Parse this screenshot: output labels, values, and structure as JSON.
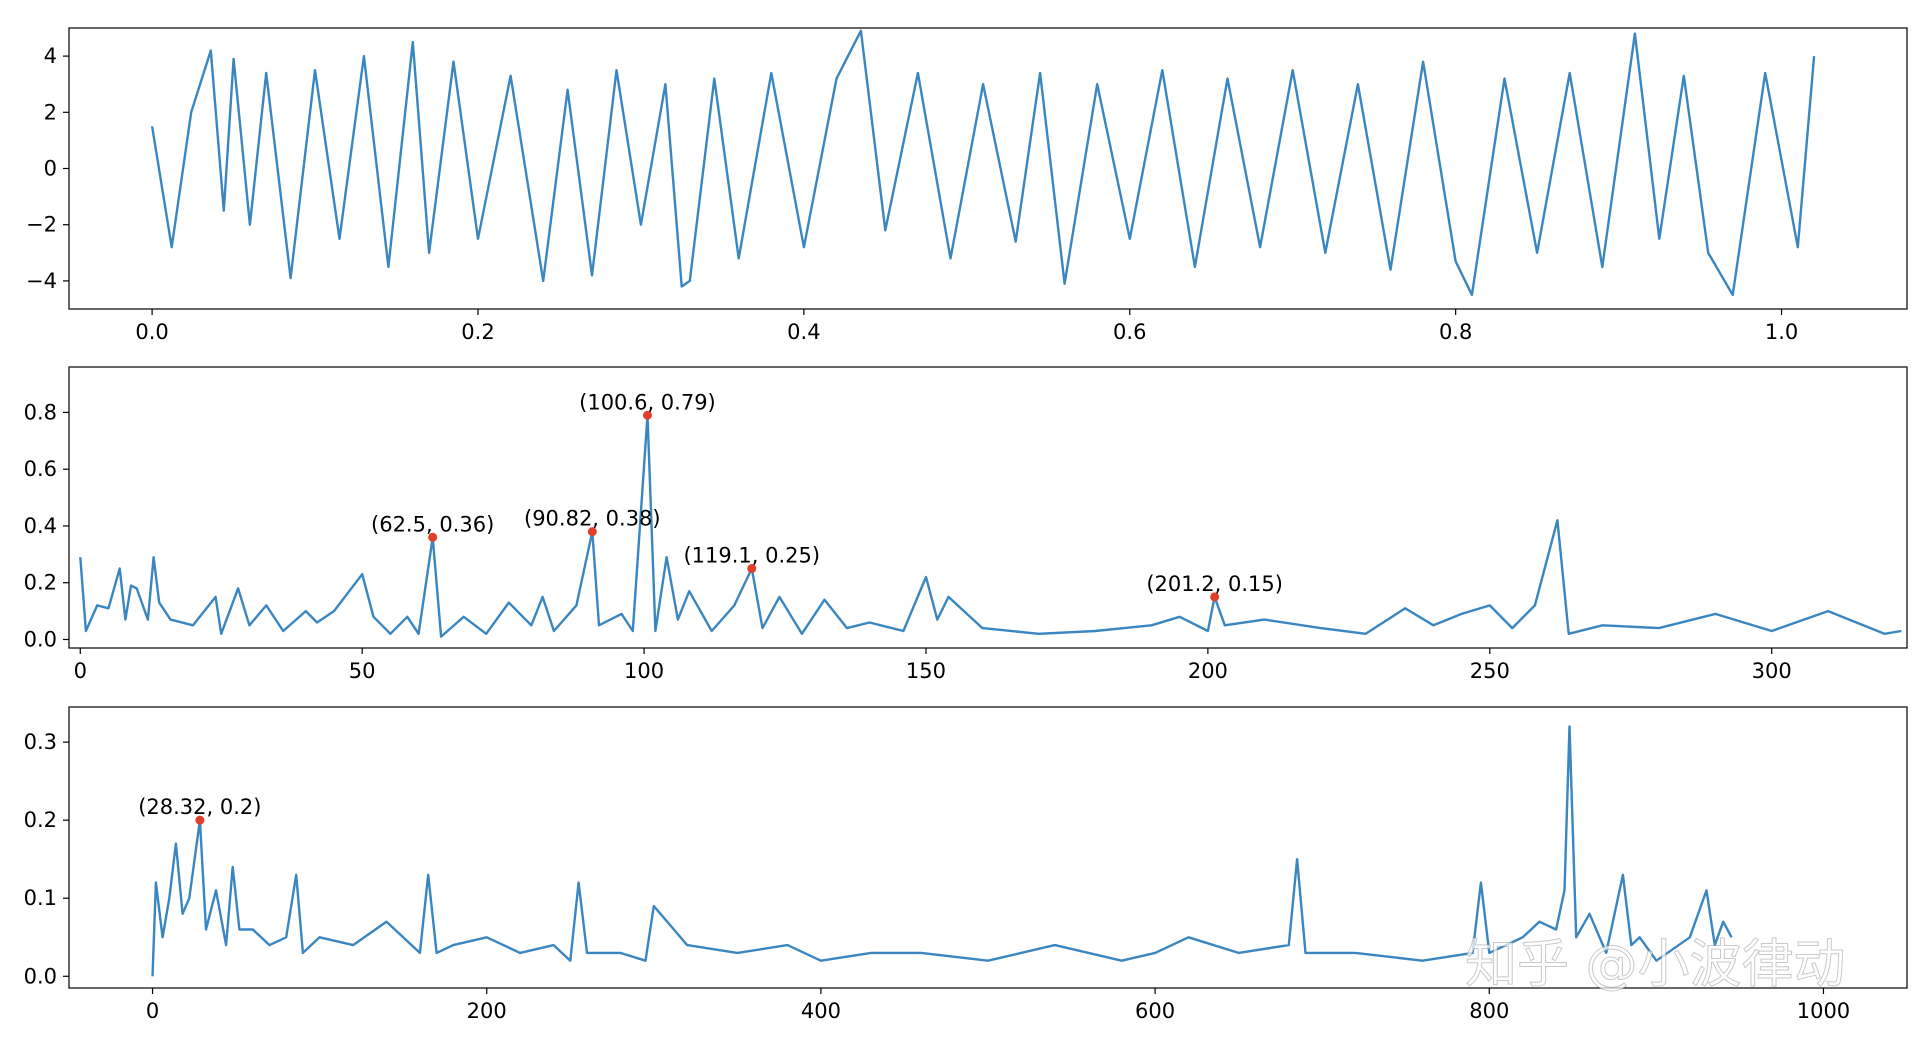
{
  "chart_data": [
    {
      "type": "line",
      "title": "",
      "xlabel": "",
      "ylabel": "",
      "xlim": [
        -0.051,
        1.077
      ],
      "ylim": [
        -5.0,
        5.0
      ],
      "xticks": [
        0.0,
        0.2,
        0.4,
        0.6,
        0.8,
        1.0
      ],
      "xtick_labels": [
        "0.0",
        "0.2",
        "0.4",
        "0.6",
        "0.8",
        "1.0"
      ],
      "yticks": [
        -4,
        -2,
        0,
        2,
        4
      ],
      "ytick_labels": [
        "−4",
        "−2",
        "0",
        "2",
        "4"
      ],
      "grid": false,
      "series": [
        {
          "color": "#3a86c0",
          "x": [
            0.0,
            0.012,
            0.024,
            0.036,
            0.044,
            0.05,
            0.06,
            0.07,
            0.085,
            0.1,
            0.115,
            0.13,
            0.145,
            0.16,
            0.17,
            0.185,
            0.2,
            0.22,
            0.24,
            0.255,
            0.27,
            0.285,
            0.3,
            0.315,
            0.325,
            0.33,
            0.345,
            0.36,
            0.38,
            0.4,
            0.42,
            0.435,
            0.45,
            0.47,
            0.49,
            0.51,
            0.53,
            0.545,
            0.56,
            0.58,
            0.6,
            0.62,
            0.64,
            0.66,
            0.68,
            0.7,
            0.72,
            0.74,
            0.76,
            0.78,
            0.8,
            0.81,
            0.83,
            0.85,
            0.87,
            0.89,
            0.91,
            0.925,
            0.94,
            0.955,
            0.97,
            0.99,
            1.01,
            1.02
          ],
          "y": [
            1.5,
            -2.8,
            2.0,
            4.2,
            -1.5,
            3.9,
            -2.0,
            3.4,
            -3.9,
            3.5,
            -2.5,
            4.0,
            -3.5,
            4.5,
            -3.0,
            3.8,
            -2.5,
            3.3,
            -4.0,
            2.8,
            -3.8,
            3.5,
            -2.0,
            3.0,
            -4.2,
            -4.0,
            3.2,
            -3.2,
            3.4,
            -2.8,
            3.2,
            4.9,
            -2.2,
            3.4,
            -3.2,
            3.0,
            -2.6,
            3.4,
            -4.1,
            3.0,
            -2.5,
            3.5,
            -3.5,
            3.2,
            -2.8,
            3.5,
            -3.0,
            3.0,
            -3.6,
            3.8,
            -3.3,
            -4.5,
            3.2,
            -3.0,
            3.4,
            -3.5,
            4.8,
            -2.5,
            3.3,
            -3.0,
            -4.5,
            3.4,
            -2.8,
            4.0
          ]
        }
      ]
    },
    {
      "type": "line",
      "title": "",
      "xlabel": "",
      "ylabel": "",
      "xlim": [
        -2,
        324
      ],
      "ylim": [
        -0.03,
        0.96
      ],
      "xticks": [
        0,
        50,
        100,
        150,
        200,
        250,
        300
      ],
      "xtick_labels": [
        "0",
        "50",
        "100",
        "150",
        "200",
        "250",
        "300"
      ],
      "yticks": [
        0.0,
        0.2,
        0.4,
        0.6,
        0.8
      ],
      "ytick_labels": [
        "0.0",
        "0.2",
        "0.4",
        "0.6",
        "0.8"
      ],
      "grid": false,
      "series": [
        {
          "color": "#3a86c0",
          "x": [
            0,
            1,
            3,
            5,
            7,
            8,
            9,
            10,
            12,
            13,
            14,
            16,
            20,
            24,
            25,
            28,
            30,
            33,
            36,
            40,
            42,
            45,
            50,
            52,
            55,
            58,
            60,
            62.5,
            64,
            68,
            72,
            76,
            80,
            82,
            84,
            88,
            90.82,
            92,
            96,
            98,
            100.6,
            102,
            104,
            106,
            108,
            110,
            112,
            116,
            119.1,
            121,
            124,
            128,
            132,
            136,
            140,
            146,
            150,
            152,
            154,
            160,
            170,
            180,
            190,
            195,
            200,
            201.2,
            203,
            210,
            220,
            228,
            235,
            240,
            245,
            250,
            254,
            258,
            262,
            264,
            270,
            280,
            290,
            300,
            310,
            320,
            323
          ],
          "y": [
            0.29,
            0.03,
            0.12,
            0.11,
            0.25,
            0.07,
            0.19,
            0.18,
            0.07,
            0.29,
            0.13,
            0.07,
            0.05,
            0.15,
            0.02,
            0.18,
            0.05,
            0.12,
            0.03,
            0.1,
            0.06,
            0.1,
            0.23,
            0.08,
            0.02,
            0.08,
            0.02,
            0.36,
            0.01,
            0.08,
            0.02,
            0.13,
            0.05,
            0.15,
            0.03,
            0.12,
            0.38,
            0.05,
            0.09,
            0.03,
            0.79,
            0.03,
            0.29,
            0.07,
            0.17,
            0.1,
            0.03,
            0.12,
            0.25,
            0.04,
            0.15,
            0.02,
            0.14,
            0.04,
            0.06,
            0.03,
            0.22,
            0.07,
            0.15,
            0.04,
            0.02,
            0.03,
            0.05,
            0.08,
            0.03,
            0.15,
            0.05,
            0.07,
            0.04,
            0.02,
            0.11,
            0.05,
            0.09,
            0.12,
            0.04,
            0.12,
            0.42,
            0.02,
            0.05,
            0.04,
            0.09,
            0.03,
            0.1,
            0.02,
            0.03
          ]
        }
      ],
      "annotations": [
        {
          "x": 62.5,
          "y": 0.36,
          "text": "(62.5, 0.36)"
        },
        {
          "x": 90.82,
          "y": 0.38,
          "text": "(90.82, 0.38)"
        },
        {
          "x": 100.6,
          "y": 0.79,
          "text": "(100.6, 0.79)"
        },
        {
          "x": 119.1,
          "y": 0.25,
          "text": "(119.1, 0.25)"
        },
        {
          "x": 201.2,
          "y": 0.15,
          "text": "(201.2, 0.15)"
        }
      ]
    },
    {
      "type": "line",
      "title": "",
      "xlabel": "",
      "ylabel": "",
      "xlim": [
        -50,
        1050
      ],
      "ylim": [
        -0.015,
        0.345
      ],
      "xticks": [
        0,
        200,
        400,
        600,
        800,
        1000
      ],
      "xtick_labels": [
        "0",
        "200",
        "400",
        "600",
        "800",
        "1000"
      ],
      "yticks": [
        0.0,
        0.1,
        0.2,
        0.3
      ],
      "ytick_labels": [
        "0.0",
        "0.1",
        "0.2",
        "0.3"
      ],
      "grid": false,
      "series": [
        {
          "color": "#3a86c0",
          "x": [
            0,
            2,
            6,
            10,
            14,
            18,
            22,
            28.32,
            32,
            38,
            44,
            48,
            52,
            60,
            70,
            80,
            86,
            90,
            100,
            120,
            140,
            160,
            165,
            170,
            180,
            200,
            220,
            240,
            250,
            255,
            260,
            280,
            295,
            300,
            320,
            350,
            380,
            400,
            430,
            460,
            500,
            540,
            580,
            600,
            620,
            650,
            680,
            685,
            690,
            720,
            760,
            790,
            795,
            800,
            820,
            830,
            840,
            845,
            848,
            852,
            860,
            870,
            880,
            885,
            890,
            900,
            920,
            930,
            935,
            940,
            945
          ],
          "y": [
            0.0,
            0.12,
            0.05,
            0.1,
            0.17,
            0.08,
            0.1,
            0.2,
            0.06,
            0.11,
            0.04,
            0.14,
            0.06,
            0.06,
            0.04,
            0.05,
            0.13,
            0.03,
            0.05,
            0.04,
            0.07,
            0.03,
            0.13,
            0.03,
            0.04,
            0.05,
            0.03,
            0.04,
            0.02,
            0.12,
            0.03,
            0.03,
            0.02,
            0.09,
            0.04,
            0.03,
            0.04,
            0.02,
            0.03,
            0.03,
            0.02,
            0.04,
            0.02,
            0.03,
            0.05,
            0.03,
            0.04,
            0.15,
            0.03,
            0.03,
            0.02,
            0.03,
            0.12,
            0.03,
            0.05,
            0.07,
            0.06,
            0.11,
            0.32,
            0.05,
            0.08,
            0.03,
            0.13,
            0.04,
            0.05,
            0.02,
            0.05,
            0.11,
            0.04,
            0.07,
            0.05
          ]
        }
      ],
      "annotations": [
        {
          "x": 28.32,
          "y": 0.2,
          "text": "(28.32, 0.2)"
        }
      ]
    }
  ],
  "watermark": {
    "text": "知乎 @小波律动"
  }
}
